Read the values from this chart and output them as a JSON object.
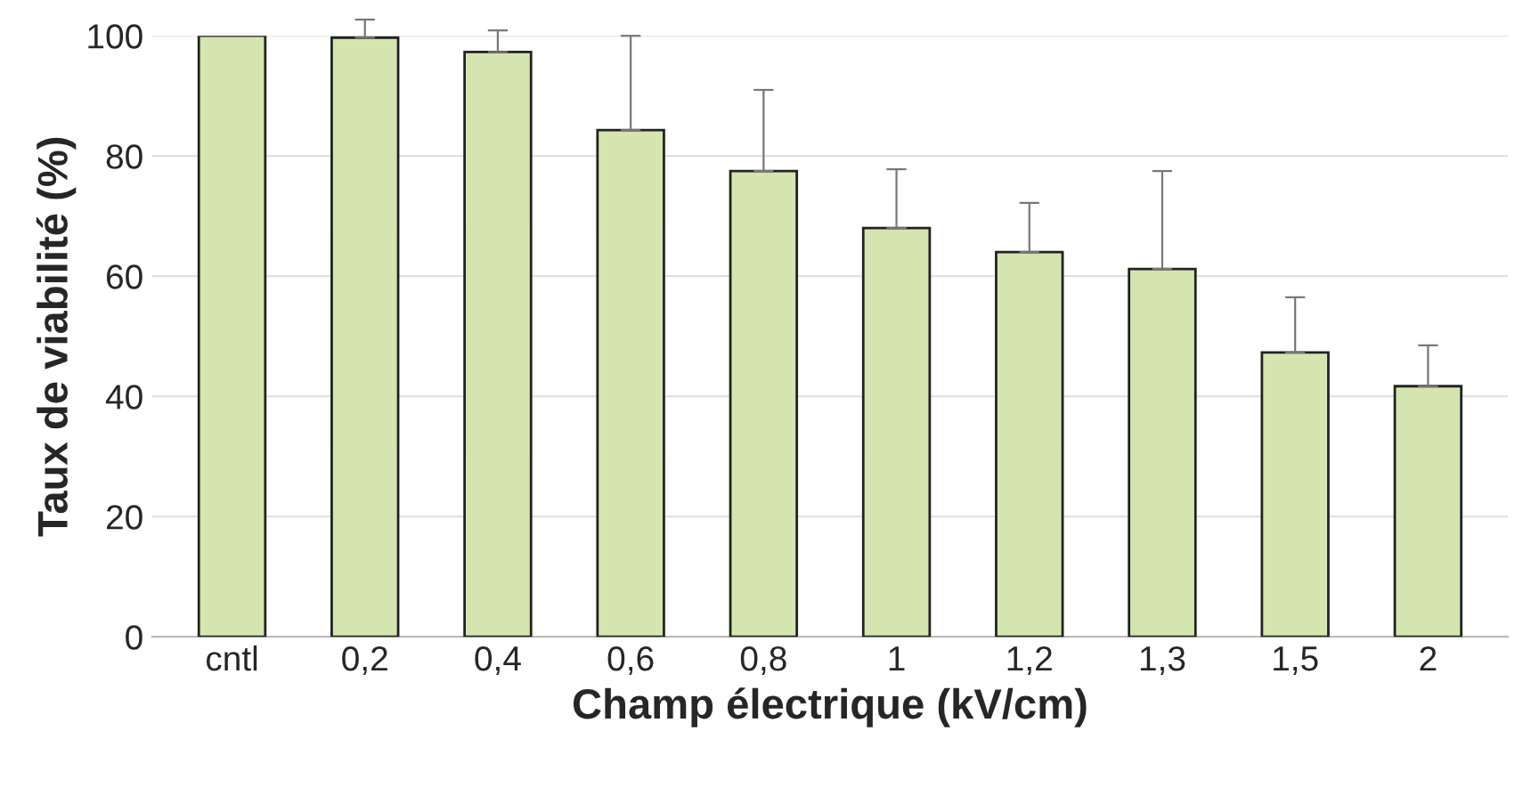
{
  "chart_data": {
    "type": "bar",
    "xlabel": "Champ électrique (kV/cm)",
    "ylabel": "Taux de viabilité (%)",
    "categories": [
      "cntl",
      "0,2",
      "0,4",
      "0,6",
      "0,8",
      "1",
      "1,2",
      "1,3",
      "1,5",
      "2"
    ],
    "values": [
      100,
      99.7,
      97.3,
      84.3,
      77.5,
      68,
      64,
      61.2,
      47.3,
      41.7
    ],
    "errors": [
      null,
      [
        99.7,
        102.7
      ],
      [
        97.3,
        100.9
      ],
      [
        84.3,
        100
      ],
      [
        77.5,
        91
      ],
      [
        68,
        77.8
      ],
      [
        64,
        72.2
      ],
      [
        61.2,
        77.5
      ],
      [
        47.3,
        56.5
      ],
      [
        41.7,
        48.5
      ]
    ],
    "color": "#d4e5b0",
    "ylim": [
      0,
      100
    ],
    "yticks": [
      0,
      20,
      40,
      60,
      80,
      100
    ],
    "grid": "y",
    "legend": false
  }
}
